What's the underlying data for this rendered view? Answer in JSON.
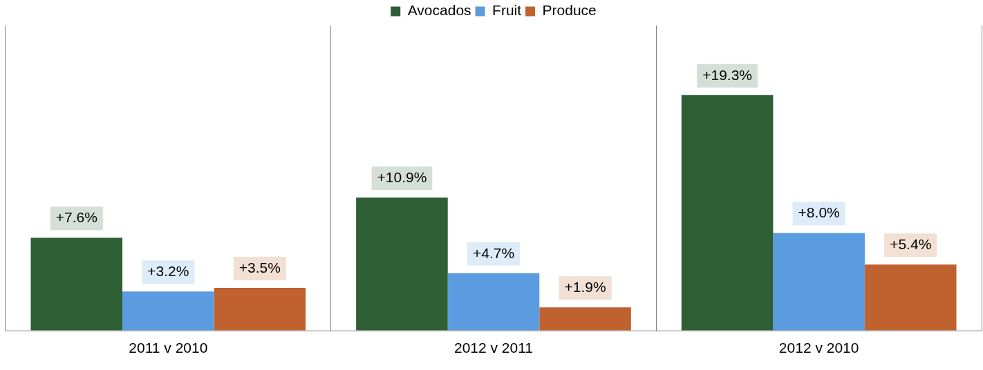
{
  "chart_data": {
    "type": "bar",
    "categories": [
      "2011 v 2010",
      "2012 v 2011",
      "2012 v 2010"
    ],
    "series": [
      {
        "name": "Avocados",
        "color": "#2f5f35",
        "values": [
          7.6,
          10.9,
          19.3
        ],
        "value_labels": [
          "+7.6%",
          "+10.9%",
          "+19.3%"
        ]
      },
      {
        "name": "Fruit",
        "color": "#5b9be0",
        "values": [
          3.2,
          4.7,
          8.0
        ],
        "value_labels": [
          "+3.2%",
          "+4.7%",
          "+8.0%"
        ]
      },
      {
        "name": "Produce",
        "color": "#c0622f",
        "values": [
          3.5,
          1.9,
          5.4
        ],
        "value_labels": [
          "+3.5%",
          "+1.9%",
          "+5.4%"
        ]
      }
    ],
    "grid": "x",
    "legend": "top"
  }
}
